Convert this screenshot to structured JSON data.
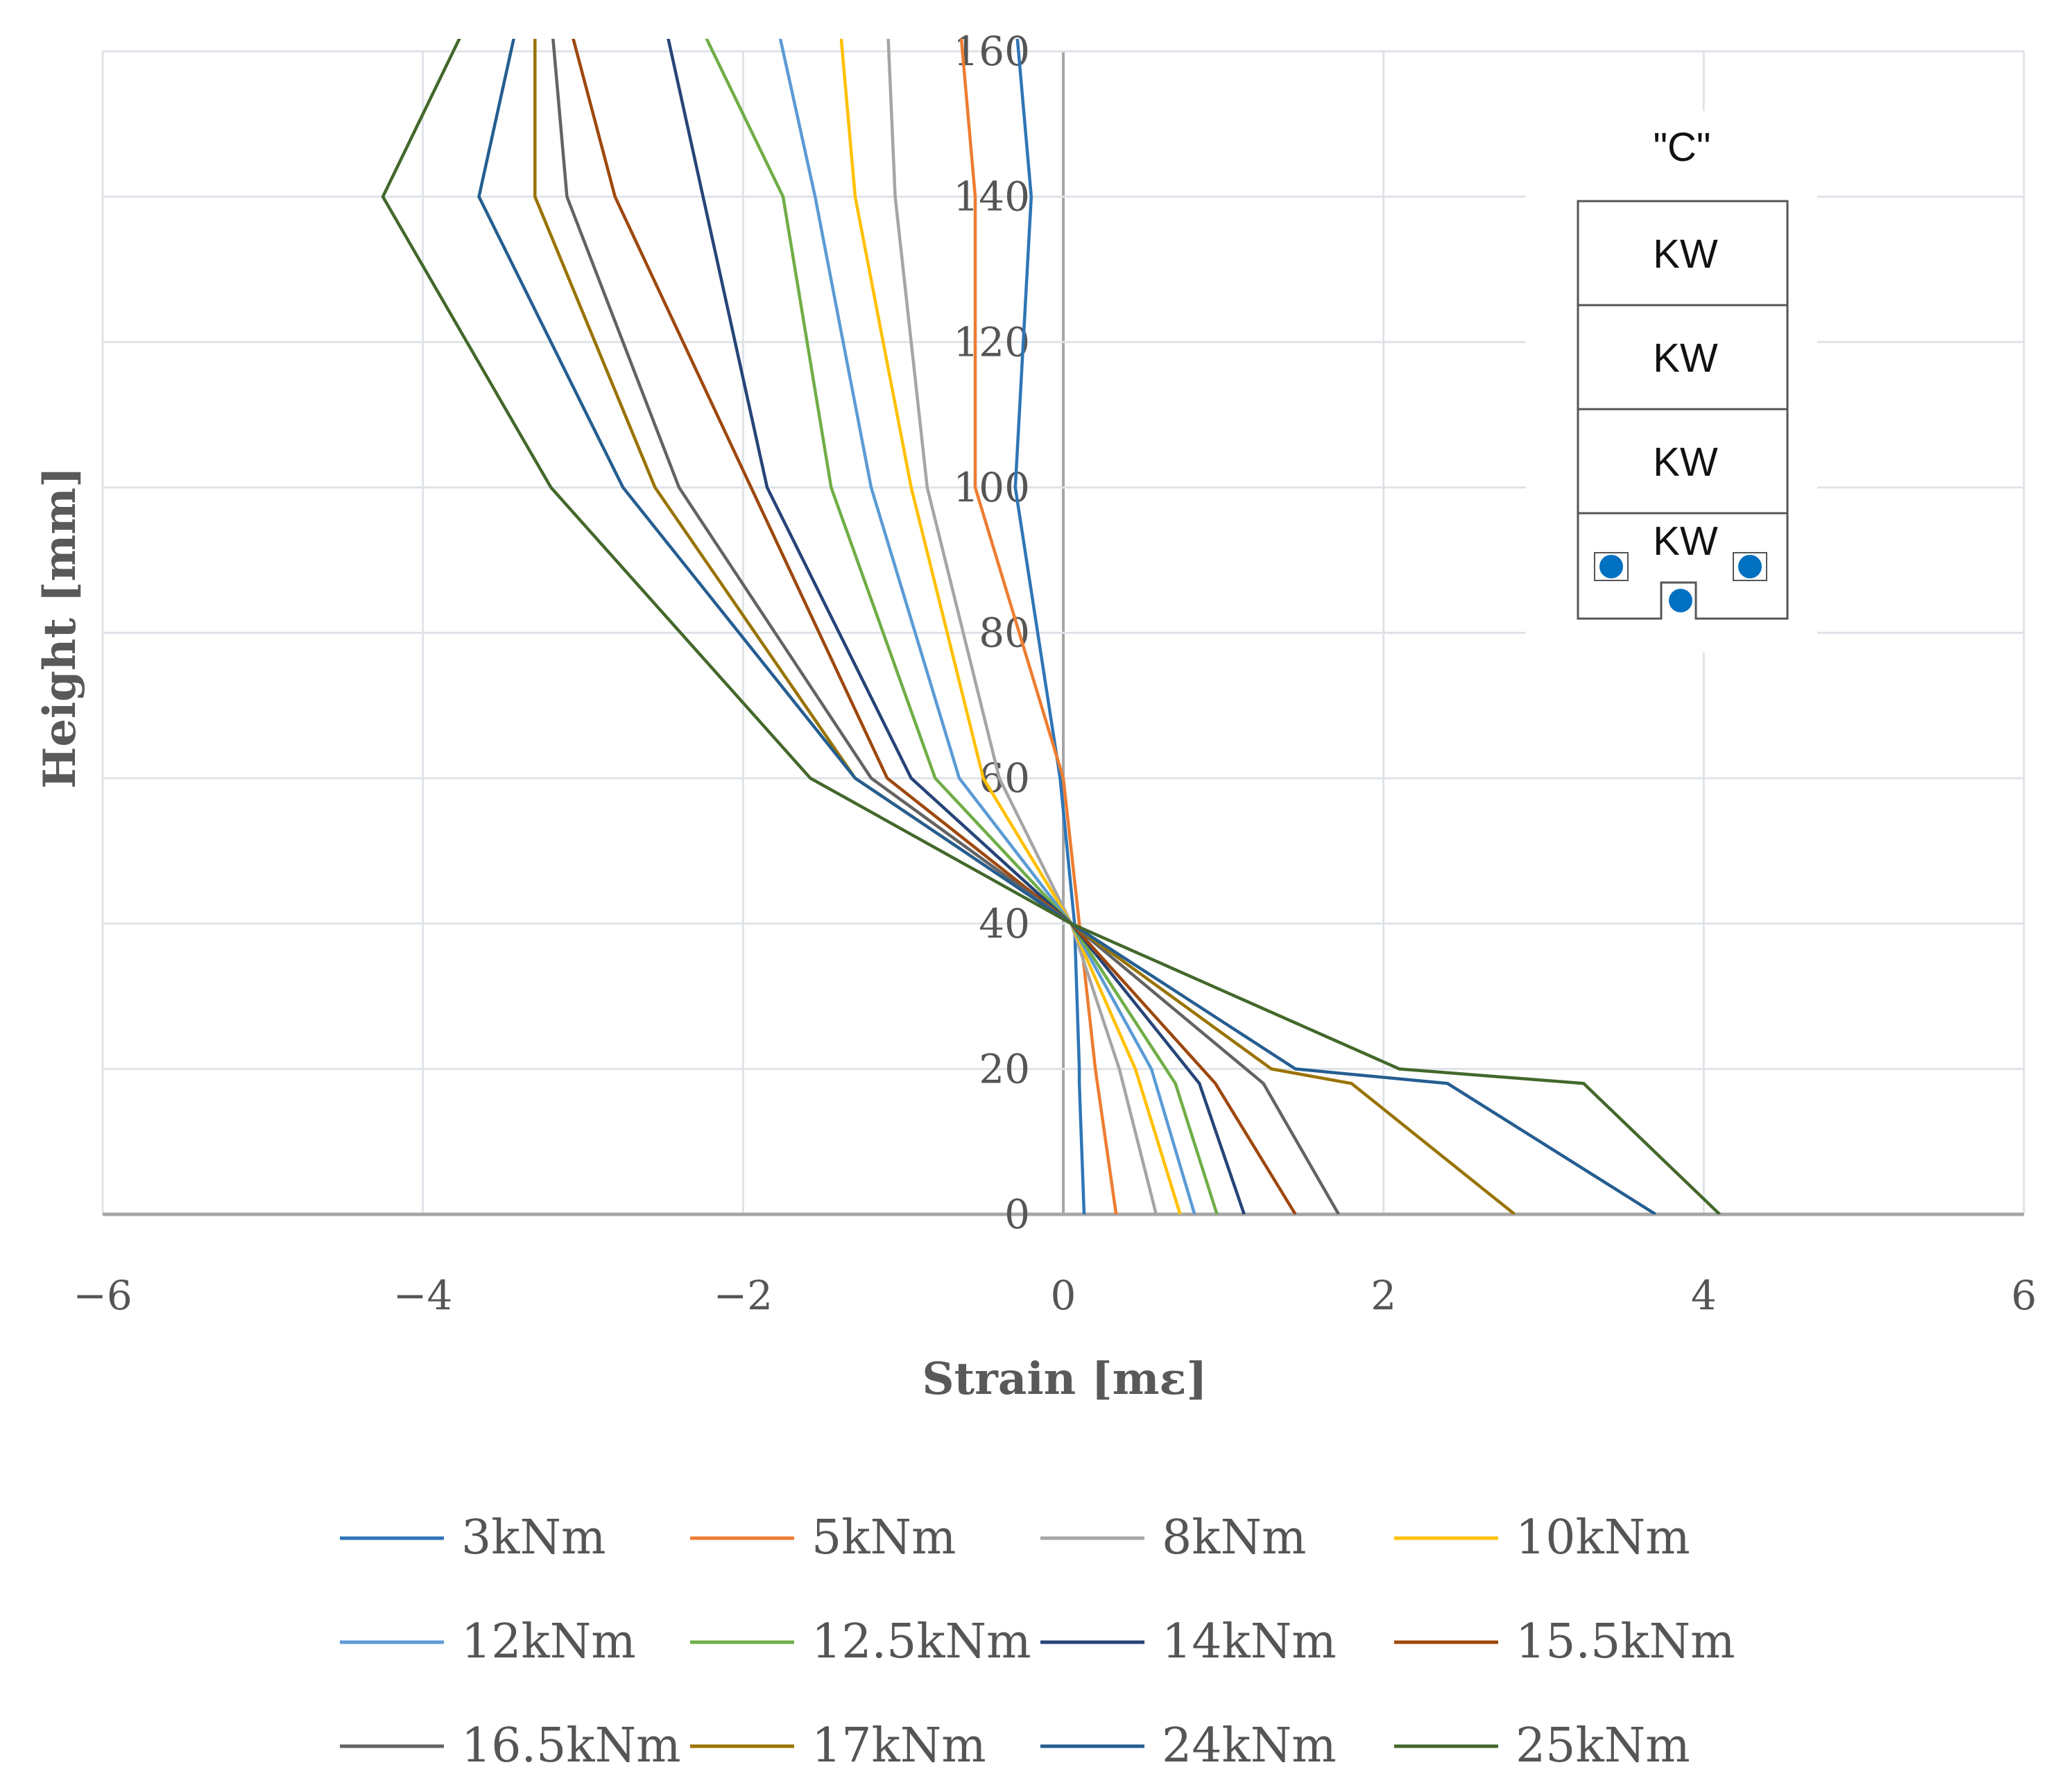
{
  "chart_data": {
    "type": "line",
    "xlabel": "Strain [mε]",
    "ylabel": "Height [mm]",
    "xlim": [
      -6,
      6
    ],
    "ylim": [
      0,
      160
    ],
    "xticks": [
      -6,
      -4,
      -2,
      0,
      2,
      4,
      6
    ],
    "yticks": [
      0,
      20,
      40,
      60,
      80,
      100,
      120,
      140,
      160
    ],
    "xtick_labels": [
      "−6",
      "−4",
      "−2",
      "0",
      "2",
      "4",
      "6"
    ],
    "ytick_labels": [
      "0",
      "20",
      "40",
      "60",
      "80",
      "100",
      "120",
      "140",
      "160"
    ],
    "grid": true,
    "legend_position": "bottom",
    "series": [
      {
        "name": "3kNm",
        "color": "#2E75B6",
        "points": [
          [
            0.13,
            0
          ],
          [
            0.1,
            18
          ],
          [
            0.1,
            20
          ],
          [
            0.07,
            40
          ],
          [
            -0.02,
            60
          ],
          [
            -0.3,
            100
          ],
          [
            -0.2,
            140
          ],
          [
            -0.3,
            165
          ]
        ]
      },
      {
        "name": "5kNm",
        "color": "#ED7D31",
        "points": [
          [
            0.33,
            0
          ],
          [
            0.2,
            20
          ],
          [
            0.1,
            40
          ],
          [
            0.0,
            60
          ],
          [
            -0.55,
            100
          ],
          [
            -0.55,
            140
          ],
          [
            -0.65,
            165
          ]
        ]
      },
      {
        "name": "8kNm",
        "color": "#A5A5A5",
        "points": [
          [
            0.58,
            0
          ],
          [
            0.35,
            20
          ],
          [
            0.05,
            40
          ],
          [
            -0.4,
            60
          ],
          [
            -0.85,
            100
          ],
          [
            -1.05,
            140
          ],
          [
            -1.1,
            165
          ]
        ]
      },
      {
        "name": "10kNm",
        "color": "#FFC000",
        "points": [
          [
            0.73,
            0
          ],
          [
            0.45,
            20
          ],
          [
            0.05,
            40
          ],
          [
            -0.5,
            60
          ],
          [
            -0.95,
            100
          ],
          [
            -1.3,
            140
          ],
          [
            -1.4,
            165
          ]
        ]
      },
      {
        "name": "12kNm",
        "color": "#5B9BD5",
        "points": [
          [
            0.82,
            0
          ],
          [
            0.55,
            20
          ],
          [
            0.05,
            40
          ],
          [
            -0.65,
            60
          ],
          [
            -1.2,
            100
          ],
          [
            -1.55,
            140
          ],
          [
            -1.8,
            165
          ]
        ]
      },
      {
        "name": "12.5kNm",
        "color": "#70AD47",
        "points": [
          [
            0.96,
            0
          ],
          [
            0.7,
            18
          ],
          [
            0.05,
            40
          ],
          [
            -0.8,
            60
          ],
          [
            -1.45,
            100
          ],
          [
            -1.75,
            140
          ],
          [
            -2.3,
            165
          ]
        ]
      },
      {
        "name": "14kNm",
        "color": "#264478",
        "points": [
          [
            1.13,
            0
          ],
          [
            0.85,
            18
          ],
          [
            0.05,
            40
          ],
          [
            -0.95,
            60
          ],
          [
            -1.85,
            100
          ],
          [
            -2.5,
            165
          ]
        ]
      },
      {
        "name": "15.5kNm",
        "color": "#9E480E",
        "points": [
          [
            1.45,
            0
          ],
          [
            0.95,
            18
          ],
          [
            0.05,
            40
          ],
          [
            -1.1,
            60
          ],
          [
            -1.95,
            100
          ],
          [
            -2.8,
            140
          ],
          [
            -3.1,
            165
          ]
        ]
      },
      {
        "name": "16.5kNm",
        "color": "#636363",
        "points": [
          [
            1.72,
            0
          ],
          [
            1.25,
            18
          ],
          [
            0.05,
            40
          ],
          [
            -1.2,
            60
          ],
          [
            -2.4,
            100
          ],
          [
            -3.1,
            140
          ],
          [
            -3.2,
            165
          ]
        ]
      },
      {
        "name": "17kNm",
        "color": "#997300",
        "points": [
          [
            2.82,
            0
          ],
          [
            1.8,
            18
          ],
          [
            1.3,
            20
          ],
          [
            0.05,
            40
          ],
          [
            -1.3,
            60
          ],
          [
            -2.55,
            100
          ],
          [
            -3.3,
            140
          ],
          [
            -3.3,
            165
          ]
        ]
      },
      {
        "name": "24kNm",
        "color": "#255E91",
        "points": [
          [
            3.7,
            0
          ],
          [
            2.4,
            18
          ],
          [
            1.45,
            20
          ],
          [
            0.05,
            40
          ],
          [
            -1.3,
            60
          ],
          [
            -2.75,
            100
          ],
          [
            -3.65,
            140
          ],
          [
            -3.4,
            165
          ]
        ]
      },
      {
        "name": "25kNm",
        "color": "#43682B",
        "points": [
          [
            4.1,
            0
          ],
          [
            3.25,
            18
          ],
          [
            2.1,
            20
          ],
          [
            0.05,
            40
          ],
          [
            -1.58,
            60
          ],
          [
            -3.2,
            100
          ],
          [
            -4.25,
            140
          ],
          [
            -3.7,
            165
          ]
        ]
      }
    ]
  },
  "inset": {
    "title": "\"C\"",
    "blocks": [
      "KW",
      "KW",
      "KW",
      "KW"
    ],
    "sensor_color": "#0070C0"
  }
}
